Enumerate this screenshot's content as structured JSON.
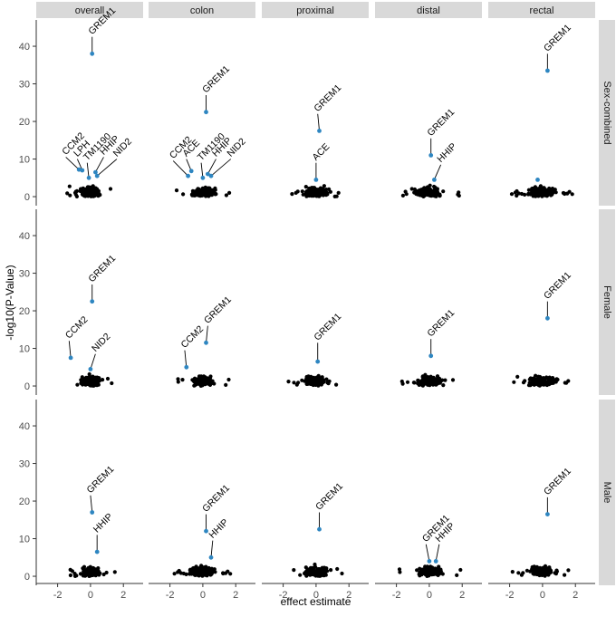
{
  "chart_data": {
    "type": "scatter",
    "xlabel": "effect estimate",
    "ylabel": "-log10(P-Value)",
    "columns": [
      "overall",
      "colon",
      "proximal",
      "distal",
      "rectal"
    ],
    "rows": [
      "Sex-combined",
      "Female",
      "Male"
    ],
    "xticks": [
      -2,
      0,
      2
    ],
    "yticks": [
      0,
      10,
      20,
      30,
      40
    ],
    "xlim": [
      -3.3,
      3.2
    ],
    "ylim": [
      -2.4,
      47
    ],
    "grid": false,
    "colors": {
      "highlight": "#2E86C1",
      "background_points": "#000000",
      "strip": "#D9D9D9",
      "axis": "#333333"
    },
    "panels": [
      {
        "row": "Sex-combined",
        "col": "overall",
        "spread": 1.0,
        "labels": [
          {
            "gene": "GREM1",
            "x": 0.1,
            "y": 38.0,
            "lx": 0.1,
            "ly": 42.5
          },
          {
            "gene": "CCM2",
            "x": -0.7,
            "y": 7.2,
            "lx": -1.5,
            "ly": 10.5
          },
          {
            "gene": "LPH",
            "x": -0.5,
            "y": 7.0,
            "lx": -0.8,
            "ly": 10.0
          },
          {
            "gene": "TM1190",
            "x": -0.1,
            "y": 5.0,
            "lx": -0.2,
            "ly": 9.0
          },
          {
            "gene": "HHIP",
            "x": 0.3,
            "y": 6.5,
            "lx": 0.8,
            "ly": 10.5
          },
          {
            "gene": "NID2",
            "x": 0.4,
            "y": 5.5,
            "lx": 1.6,
            "ly": 10.0
          }
        ]
      },
      {
        "row": "Sex-combined",
        "col": "colon",
        "spread": 1.1,
        "labels": [
          {
            "gene": "GREM1",
            "x": 0.2,
            "y": 22.5,
            "lx": 0.2,
            "ly": 27.0
          },
          {
            "gene": "CCM2",
            "x": -0.9,
            "y": 5.5,
            "lx": -1.8,
            "ly": 9.5
          },
          {
            "gene": "ACE",
            "x": -0.7,
            "y": 6.8,
            "lx": -1.0,
            "ly": 10.0
          },
          {
            "gene": "TM1190",
            "x": 0.0,
            "y": 5.0,
            "lx": -0.1,
            "ly": 9.0
          },
          {
            "gene": "HHIP",
            "x": 0.3,
            "y": 6.0,
            "lx": 0.8,
            "ly": 10.0
          },
          {
            "gene": "NID2",
            "x": 0.5,
            "y": 5.5,
            "lx": 1.7,
            "ly": 10.0
          }
        ]
      },
      {
        "row": "Sex-combined",
        "col": "proximal",
        "spread": 1.2,
        "labels": [
          {
            "gene": "GREM1",
            "x": 0.2,
            "y": 17.5,
            "lx": 0.1,
            "ly": 22.0
          },
          {
            "gene": "ACE",
            "x": 0.0,
            "y": 4.5,
            "lx": 0.0,
            "ly": 9.0
          }
        ]
      },
      {
        "row": "Sex-combined",
        "col": "distal",
        "spread": 1.2,
        "labels": [
          {
            "gene": "GREM1",
            "x": 0.1,
            "y": 11.0,
            "lx": 0.1,
            "ly": 15.5
          },
          {
            "gene": "HHIP",
            "x": 0.3,
            "y": 4.5,
            "lx": 0.7,
            "ly": 8.5
          }
        ]
      },
      {
        "row": "Sex-combined",
        "col": "rectal",
        "spread": 1.3,
        "labels": [
          {
            "gene": "GREM1",
            "x": 0.3,
            "y": 33.5,
            "lx": 0.3,
            "ly": 38.0
          },
          {
            "gene": "",
            "x": -0.3,
            "y": 4.5,
            "lx": -0.3,
            "ly": 4.5
          }
        ]
      },
      {
        "row": "Female",
        "col": "overall",
        "spread": 0.9,
        "labels": [
          {
            "gene": "GREM1",
            "x": 0.1,
            "y": 22.5,
            "lx": 0.1,
            "ly": 27.0
          },
          {
            "gene": "CCM2",
            "x": -1.2,
            "y": 7.5,
            "lx": -1.3,
            "ly": 12.0
          },
          {
            "gene": "NID2",
            "x": 0.0,
            "y": 4.5,
            "lx": 0.3,
            "ly": 8.5
          }
        ]
      },
      {
        "row": "Female",
        "col": "colon",
        "spread": 1.0,
        "labels": [
          {
            "gene": "GREM1",
            "x": 0.2,
            "y": 11.5,
            "lx": 0.3,
            "ly": 16.0
          },
          {
            "gene": "CCM2",
            "x": -1.0,
            "y": 5.0,
            "lx": -1.1,
            "ly": 9.5
          }
        ]
      },
      {
        "row": "Female",
        "col": "proximal",
        "spread": 1.1,
        "labels": [
          {
            "gene": "GREM1",
            "x": 0.1,
            "y": 6.5,
            "lx": 0.1,
            "ly": 11.5
          }
        ]
      },
      {
        "row": "Female",
        "col": "distal",
        "spread": 1.1,
        "labels": [
          {
            "gene": "GREM1",
            "x": 0.1,
            "y": 8.0,
            "lx": 0.1,
            "ly": 12.5
          }
        ]
      },
      {
        "row": "Female",
        "col": "rectal",
        "spread": 1.3,
        "labels": [
          {
            "gene": "GREM1",
            "x": 0.3,
            "y": 18.0,
            "lx": 0.3,
            "ly": 22.5
          }
        ]
      },
      {
        "row": "Male",
        "col": "overall",
        "spread": 1.0,
        "labels": [
          {
            "gene": "GREM1",
            "x": 0.1,
            "y": 17.0,
            "lx": 0.0,
            "ly": 21.5
          },
          {
            "gene": "HHIP",
            "x": 0.4,
            "y": 6.5,
            "lx": 0.4,
            "ly": 11.0
          }
        ]
      },
      {
        "row": "Male",
        "col": "colon",
        "spread": 1.2,
        "labels": [
          {
            "gene": "GREM1",
            "x": 0.2,
            "y": 12.0,
            "lx": 0.2,
            "ly": 16.5
          },
          {
            "gene": "HHIP",
            "x": 0.5,
            "y": 5.0,
            "lx": 0.6,
            "ly": 9.5
          }
        ]
      },
      {
        "row": "Male",
        "col": "proximal",
        "spread": 1.1,
        "labels": [
          {
            "gene": "GREM1",
            "x": 0.2,
            "y": 12.5,
            "lx": 0.2,
            "ly": 17.0
          }
        ]
      },
      {
        "row": "Male",
        "col": "distal",
        "spread": 1.2,
        "labels": [
          {
            "gene": "GREM1",
            "x": 0.0,
            "y": 4.0,
            "lx": -0.2,
            "ly": 8.5
          },
          {
            "gene": "HHIP",
            "x": 0.4,
            "y": 4.0,
            "lx": 0.6,
            "ly": 8.5
          }
        ]
      },
      {
        "row": "Male",
        "col": "rectal",
        "spread": 1.2,
        "labels": [
          {
            "gene": "GREM1",
            "x": 0.3,
            "y": 16.5,
            "lx": 0.3,
            "ly": 21.0
          }
        ]
      }
    ]
  }
}
